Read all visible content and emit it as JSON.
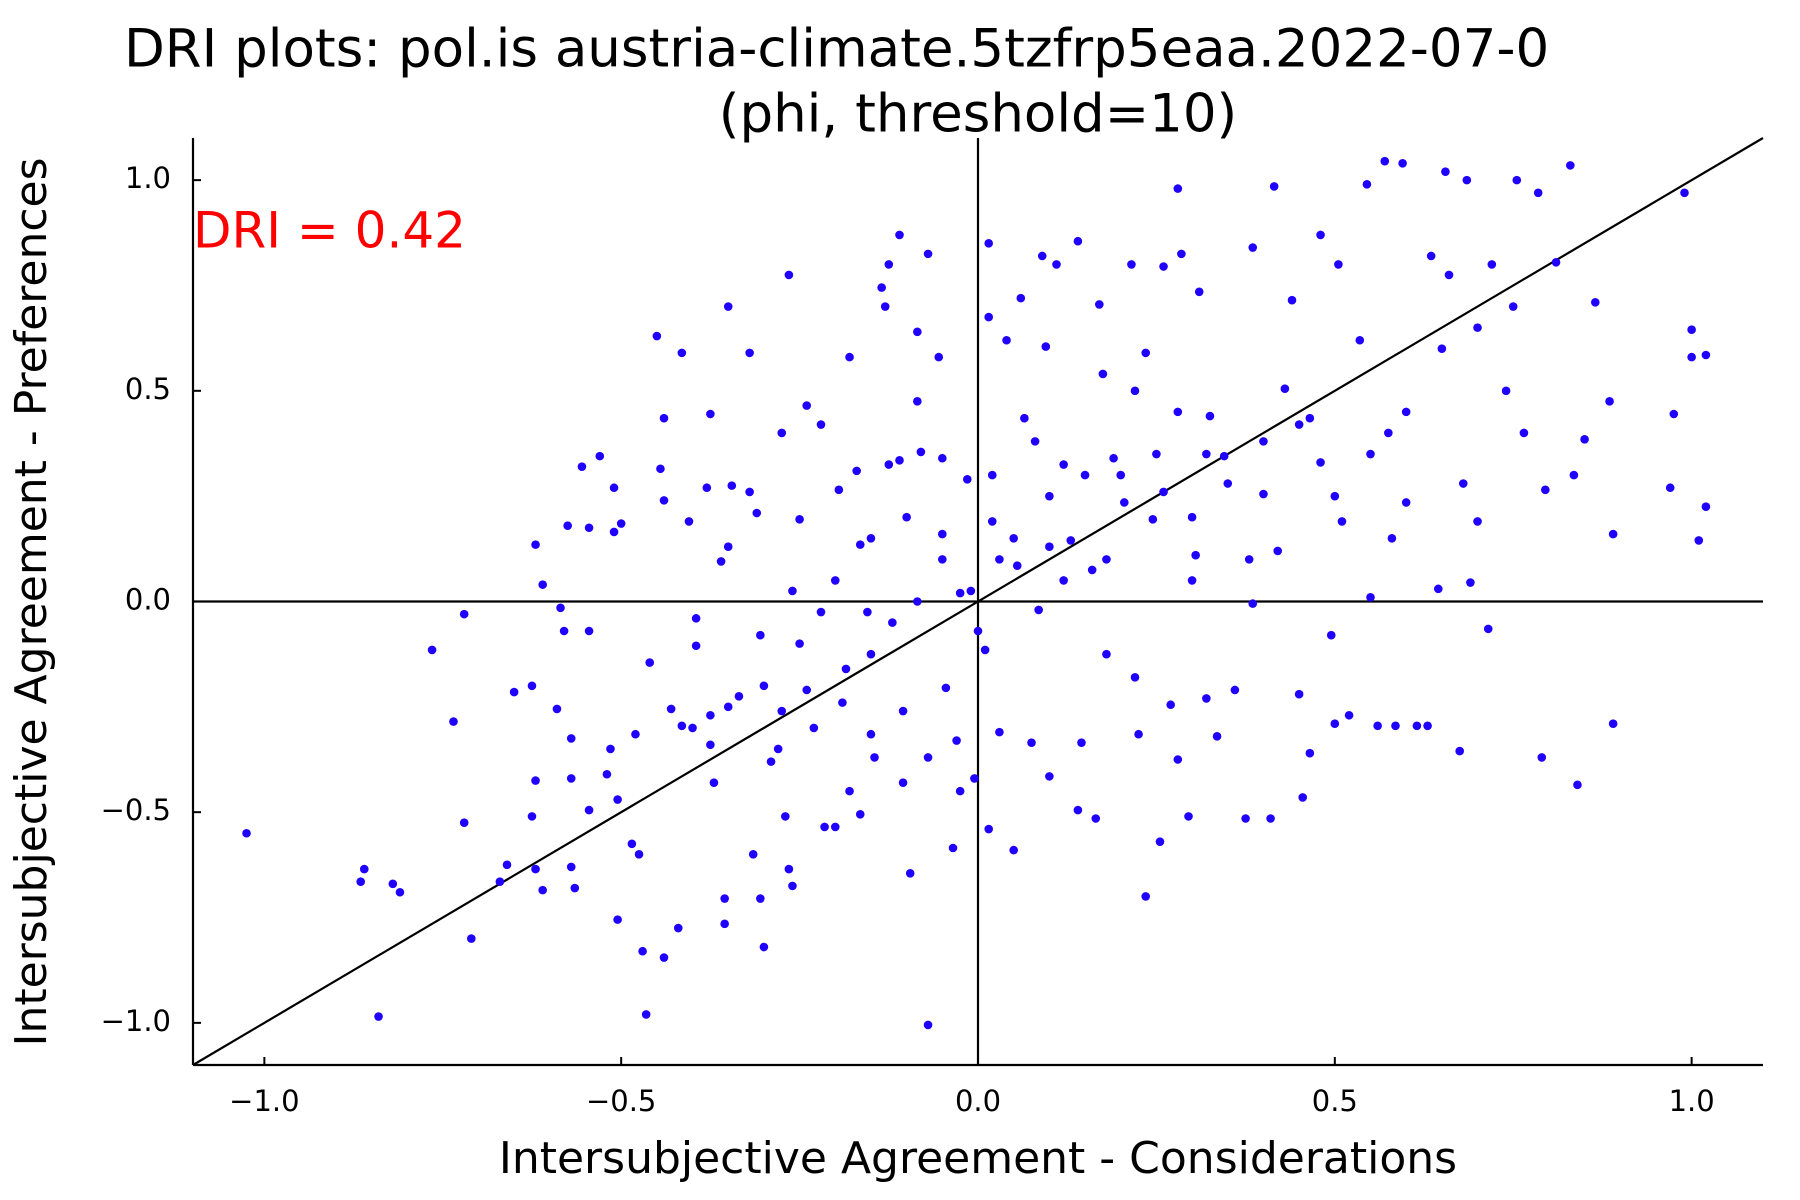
{
  "chart_data": {
    "type": "scatter",
    "title": [
      "DRI plots: pol.is austria-climate.5tzfrp5eaa.2022-07-0",
      "(phi, threshold=10)"
    ],
    "annotation": "DRI = 0.42",
    "x_label": "Intersubjective Agreement - Considerations",
    "y_label": "Intersubjective Agreement - Preferences",
    "color": "#1f00ff",
    "xlim": [
      -1.1,
      1.1
    ],
    "ylim": [
      -1.1,
      1.1
    ],
    "xticks": [
      {
        "value": -1,
        "label": "−1.0"
      },
      {
        "value": -0.5,
        "label": "−0.5"
      },
      {
        "value": 0,
        "label": "0.0"
      },
      {
        "value": 0.5,
        "label": "0.5"
      },
      {
        "value": 1,
        "label": "1.0"
      }
    ],
    "yticks": [
      {
        "value": -1,
        "label": "−1.0"
      },
      {
        "value": -0.5,
        "label": "−0.5"
      },
      {
        "value": 0,
        "label": "0.0"
      },
      {
        "value": 0.5,
        "label": "0.5"
      },
      {
        "value": 1,
        "label": "1.0"
      }
    ],
    "x": [
      -1.025,
      -0.86,
      -0.865,
      -0.82,
      -0.81,
      -0.84,
      -0.765,
      -0.72,
      -0.735,
      -0.72,
      -0.71,
      -0.67,
      -0.66,
      -0.65,
      -0.625,
      -0.62,
      -0.61,
      -0.62,
      -0.625,
      -0.62,
      -0.61,
      -0.59,
      -0.585,
      -0.58,
      -0.575,
      -0.57,
      -0.57,
      -0.57,
      -0.565,
      -0.555,
      -0.545,
      -0.545,
      -0.545,
      -0.53,
      -0.52,
      -0.515,
      -0.51,
      -0.51,
      -0.505,
      -0.505,
      -0.5,
      -0.485,
      -0.48,
      -0.475,
      -0.47,
      -0.465,
      -0.46,
      -0.45,
      -0.445,
      -0.44,
      -0.44,
      -0.44,
      -0.43,
      -0.42,
      -0.415,
      -0.415,
      -0.405,
      -0.395,
      -0.395,
      -0.375,
      -0.38,
      -0.375,
      -0.375,
      -0.37,
      -0.36,
      -0.355,
      -0.355,
      -0.35,
      -0.35,
      -0.345,
      -0.335,
      -0.32,
      -0.32,
      -0.315,
      -0.31,
      -0.305,
      -0.305,
      -0.3,
      -0.29,
      -0.275,
      -0.275,
      -0.27,
      -0.265,
      -0.26,
      -0.265,
      -0.26,
      -0.25,
      -0.24,
      -0.24,
      -0.23,
      -0.22,
      -0.22,
      -0.215,
      -0.2,
      -0.195,
      -0.19,
      -0.185,
      -0.18,
      -0.17,
      -0.165,
      -0.165,
      -0.155,
      -0.15,
      -0.15,
      -0.145,
      -0.135,
      -0.13,
      -0.125,
      -0.125,
      -0.11,
      -0.11,
      -0.105,
      -0.105,
      -0.095,
      -0.085,
      -0.085,
      -0.085,
      -0.08,
      -0.07,
      -0.07,
      -0.07,
      -0.055,
      -0.05,
      -0.05,
      -0.045,
      -0.035,
      -0.03,
      -0.025,
      -0.025,
      -0.015,
      -0.01,
      -0.005,
      0,
      0.01,
      0.015,
      0.015,
      0.015,
      0.02,
      0.03,
      0.03,
      0.04,
      0.05,
      0.055,
      0.06,
      0.065,
      0.075,
      0.085,
      0.09,
      0.095,
      0.1,
      0.1,
      0.11,
      0.12,
      0.13,
      0.14,
      0.14,
      0.145,
      0.16,
      0.165,
      0.17,
      0.175,
      0.18,
      0.19,
      0.205,
      0.215,
      0.22,
      0.225,
      0.235,
      0.235,
      0.245,
      0.255,
      0.26,
      0.27,
      0.28,
      0.28,
      0.285,
      0.295,
      0.305,
      0.31,
      0.32,
      0.325,
      0.335,
      0.345,
      0.36,
      0.375,
      0.385,
      0.385,
      0.4,
      0.41,
      0.415,
      0.43,
      0.44,
      0.45,
      0.455,
      0.465,
      0.465,
      0.48,
      0.495,
      0.5,
      0.505,
      0.51,
      0.52,
      0.535,
      0.545,
      0.55,
      0.56,
      0.57,
      0.575,
      0.585,
      0.595,
      0.6,
      0.615,
      0.63,
      0.635,
      0.645,
      0.655,
      0.66,
      0.675,
      0.685,
      0.69,
      0.7,
      0.715,
      0.72,
      0.74,
      0.755,
      0.765,
      0.785,
      0.79,
      0.795,
      0.81,
      0.83,
      0.835,
      0.84,
      0.85,
      0.865,
      0.885,
      0.89,
      0.89,
      0.97,
      0.975,
      0.99,
      1,
      1,
      1.01,
      1.02,
      1.02,
      0.2,
      0.25,
      0.3,
      0.35,
      0.4,
      0.45,
      0.28,
      0.22,
      0.15,
      0.1,
      0.05,
      0.12,
      0.18,
      0.3,
      0.38,
      0.42,
      0.5,
      0.55,
      0.6,
      0.48,
      0.32,
      0.26,
      0.08,
      -0.1,
      -0.15,
      -0.2,
      -0.12,
      -0.25,
      -0.3,
      -0.35,
      -0.4,
      -0.28,
      -0.18,
      -0.05,
      0.02,
      0.65,
      0.7,
      0.75,
      0.68,
      0.58
    ],
    "values": [
      -0.55,
      -0.635,
      -0.665,
      -0.67,
      -0.69,
      -0.985,
      -0.115,
      -0.03,
      -0.285,
      -0.525,
      -0.8,
      -0.665,
      -0.625,
      -0.215,
      -0.2,
      0.135,
      0.04,
      -0.425,
      -0.51,
      -0.635,
      -0.685,
      -0.255,
      -0.015,
      -0.07,
      0.18,
      -0.325,
      -0.42,
      -0.63,
      -0.68,
      0.32,
      -0.07,
      0.175,
      -0.495,
      0.345,
      -0.41,
      -0.35,
      0.165,
      0.27,
      -0.47,
      -0.755,
      0.185,
      -0.575,
      -0.315,
      -0.6,
      -0.83,
      -0.98,
      -0.145,
      0.63,
      0.315,
      0.435,
      0.24,
      -0.845,
      -0.255,
      -0.775,
      0.59,
      -0.295,
      0.19,
      -0.04,
      -0.105,
      0.445,
      0.27,
      -0.27,
      -0.34,
      -0.43,
      0.095,
      -0.705,
      -0.765,
      0.7,
      0.13,
      0.275,
      -0.225,
      0.26,
      0.59,
      -0.6,
      0.21,
      -0.08,
      -0.705,
      -0.82,
      -0.38,
      0.4,
      -0.26,
      -0.51,
      0.775,
      0.025,
      -0.635,
      -0.675,
      0.195,
      0.465,
      -0.21,
      -0.3,
      0.42,
      -0.025,
      -0.535,
      -0.535,
      0.265,
      -0.24,
      -0.16,
      0.58,
      0.31,
      0.135,
      -0.505,
      -0.025,
      -0.125,
      -0.315,
      -0.37,
      0.745,
      0.7,
      0.325,
      0.8,
      0.335,
      0.87,
      -0.26,
      -0.43,
      -0.645,
      0.64,
      0.475,
      0,
      0.355,
      0.825,
      -1.005,
      -0.37,
      0.58,
      0.16,
      0.34,
      -0.205,
      -0.585,
      -0.33,
      0.02,
      -0.45,
      0.29,
      0.025,
      -0.42,
      -0.07,
      -0.115,
      0.85,
      -0.54,
      0.675,
      0.19,
      -0.31,
      0.1,
      0.62,
      -0.59,
      0.085,
      0.72,
      0.435,
      -0.335,
      -0.02,
      0.82,
      0.605,
      -0.415,
      0.13,
      0.8,
      0.325,
      0.145,
      -0.495,
      0.855,
      -0.335,
      0.075,
      -0.515,
      0.705,
      0.54,
      -0.125,
      0.34,
      0.235,
      0.8,
      -0.18,
      -0.315,
      -0.7,
      0.59,
      0.195,
      -0.57,
      0.795,
      -0.245,
      0.98,
      -0.375,
      0.825,
      -0.51,
      0.11,
      0.735,
      -0.23,
      0.44,
      -0.32,
      0.345,
      -0.21,
      -0.515,
      0.84,
      -0.005,
      0.255,
      -0.515,
      0.985,
      0.505,
      0.715,
      -0.22,
      -0.465,
      0.435,
      -0.36,
      0.87,
      -0.08,
      -0.29,
      0.8,
      0.19,
      -0.27,
      0.62,
      0.99,
      0.01,
      -0.295,
      1.045,
      0.4,
      -0.295,
      1.04,
      0.235,
      -0.295,
      -0.295,
      0.82,
      0.03,
      1.02,
      0.775,
      -0.355,
      1,
      0.045,
      0.19,
      -0.065,
      0.8,
      0.5,
      1,
      0.4,
      0.97,
      -0.37,
      0.265,
      0.805,
      1.035,
      0.3,
      -0.435,
      0.385,
      0.71,
      0.475,
      0.16,
      -0.29,
      0.27,
      0.445,
      0.97,
      0.645,
      0.58,
      0.145,
      0.585,
      0.225,
      0.3,
      0.35,
      0.2,
      0.28,
      0.38,
      0.42,
      0.45,
      0.5,
      0.3,
      0.25,
      0.15,
      0.05,
      0.1,
      0.05,
      0.1,
      0.12,
      0.25,
      0.35,
      0.45,
      0.33,
      0.35,
      0.26,
      0.38,
      0.2,
      0.15,
      0.05,
      -0.05,
      -0.1,
      -0.2,
      -0.25,
      -0.3,
      -0.35,
      -0.45,
      0.1,
      0.3,
      0.6,
      0.65,
      0.7,
      0.28,
      0.15
    ]
  }
}
